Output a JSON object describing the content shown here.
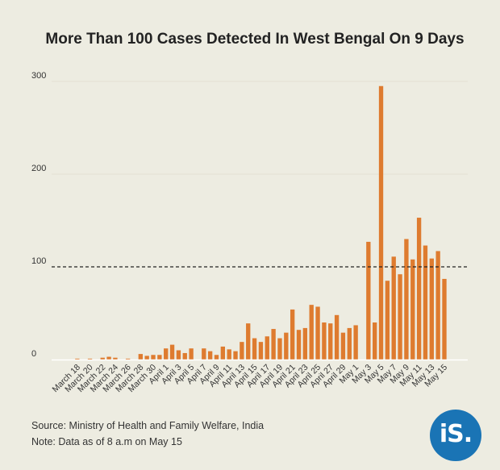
{
  "chart_data": {
    "type": "bar",
    "title": "More Than 100 Cases Detected In West Bengal On 9 Days",
    "ylim": [
      0,
      300
    ],
    "yticks": [
      0,
      100,
      200,
      300
    ],
    "reference_line": 100,
    "bar_color": "#de7b2f",
    "grid": true,
    "tick_labels": [
      "March 18",
      "March 20",
      "March 22",
      "March 24",
      "March 26",
      "March 28",
      "March 30",
      "April 1",
      "April 3",
      "April 5",
      "April 7",
      "April 9",
      "April 11",
      "April 13",
      "April 15",
      "April 17",
      "April 19",
      "April 21",
      "April 23",
      "April 25",
      "April 27",
      "April 29",
      "May 1",
      "May 3",
      "May 5",
      "May 7",
      "May 9",
      "May 11",
      "May 13",
      "May 15"
    ],
    "categories": [
      "March 17",
      "March 18",
      "March 19",
      "March 20",
      "March 21",
      "March 22",
      "March 23",
      "March 24",
      "March 25",
      "March 26",
      "March 27",
      "March 28",
      "March 29",
      "March 30",
      "March 31",
      "April 1",
      "April 2",
      "April 3",
      "April 4",
      "April 5",
      "April 6",
      "April 7",
      "April 8",
      "April 9",
      "April 10",
      "April 11",
      "April 12",
      "April 13",
      "April 14",
      "April 15",
      "April 16",
      "April 17",
      "April 18",
      "April 19",
      "April 20",
      "April 21",
      "April 22",
      "April 23",
      "April 24",
      "April 25",
      "April 26",
      "April 27",
      "April 28",
      "April 29",
      "April 30",
      "May 1",
      "May 2",
      "May 3",
      "May 4",
      "May 5",
      "May 6",
      "May 7",
      "May 8",
      "May 9",
      "May 10",
      "May 11",
      "May 12",
      "May 13",
      "May 14",
      "May 15"
    ],
    "values": [
      0,
      1,
      0,
      1,
      0,
      2,
      3,
      2,
      0,
      1,
      0,
      6,
      4,
      5,
      5,
      12,
      16,
      10,
      7,
      12,
      0,
      12,
      9,
      5,
      14,
      11,
      9,
      19,
      39,
      23,
      19,
      25,
      33,
      23,
      29,
      54,
      32,
      34,
      59,
      57,
      40,
      39,
      48,
      29,
      34,
      37,
      0,
      127,
      40,
      295,
      85,
      111,
      92,
      130,
      108,
      153,
      123,
      109,
      117,
      87
    ]
  },
  "footer": {
    "source": "Source: Ministry of Health and Family Welfare, India",
    "note": "Note: Data as of 8 a.m on May 15"
  },
  "logo": {
    "text": "iS."
  }
}
